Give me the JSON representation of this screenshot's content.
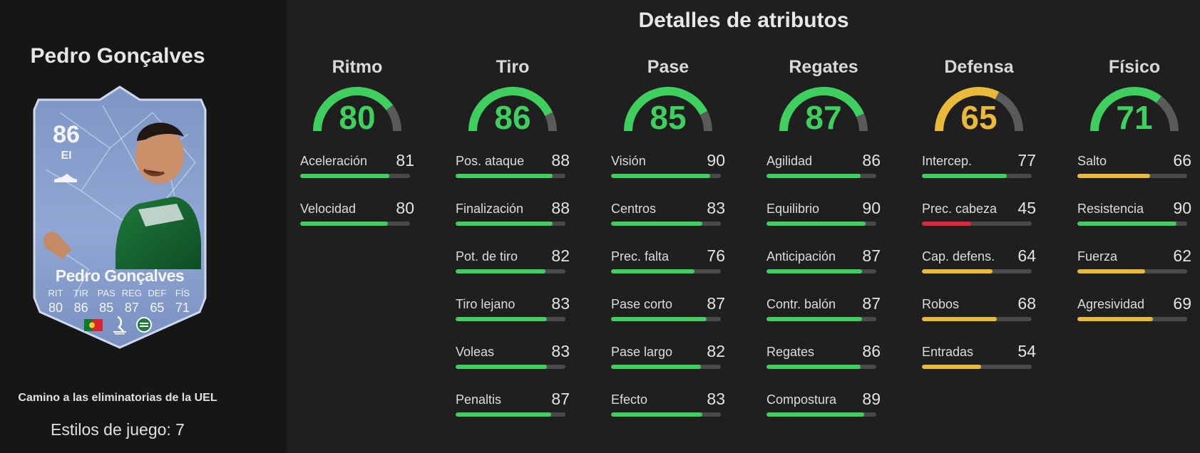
{
  "player": {
    "name": "Pedro Gonçalves",
    "event": "Camino a las eliminatorias de la UEL",
    "playstyles": "Estilos de juego: 7"
  },
  "card": {
    "ovr": "86",
    "position": "EI",
    "name": "Pedro Gonçalves",
    "stat_labels": [
      "RIT",
      "TIR",
      "PAS",
      "REG",
      "DEF",
      "FÍS"
    ],
    "stat_values": [
      "80",
      "86",
      "85",
      "87",
      "65",
      "71"
    ],
    "nation_icon": "portugal-flag-icon",
    "league_icon": "liga-portugal-icon",
    "club_icon": "sporting-cp-crest-icon"
  },
  "section_title": "Detalles de atributos",
  "colors": {
    "green": "#3ecf5e",
    "yellow": "#e8b93a",
    "red": "#e0263a",
    "track": "#4a4a4a"
  },
  "categories": [
    {
      "name": "Ritmo",
      "value": "80",
      "tone": "green",
      "attributes": [
        {
          "label": "Aceleración",
          "value": "81"
        },
        {
          "label": "Velocidad",
          "value": "80"
        }
      ]
    },
    {
      "name": "Tiro",
      "value": "86",
      "tone": "green",
      "attributes": [
        {
          "label": "Pos. ataque",
          "value": "88"
        },
        {
          "label": "Finalización",
          "value": "88"
        },
        {
          "label": "Pot. de tiro",
          "value": "82"
        },
        {
          "label": "Tiro lejano",
          "value": "83"
        },
        {
          "label": "Voleas",
          "value": "83"
        },
        {
          "label": "Penaltis",
          "value": "87"
        }
      ]
    },
    {
      "name": "Pase",
      "value": "85",
      "tone": "green",
      "attributes": [
        {
          "label": "Visión",
          "value": "90"
        },
        {
          "label": "Centros",
          "value": "83"
        },
        {
          "label": "Prec. falta",
          "value": "76"
        },
        {
          "label": "Pase corto",
          "value": "87"
        },
        {
          "label": "Pase largo",
          "value": "82"
        },
        {
          "label": "Efecto",
          "value": "83"
        }
      ]
    },
    {
      "name": "Regates",
      "value": "87",
      "tone": "green",
      "attributes": [
        {
          "label": "Agilidad",
          "value": "86"
        },
        {
          "label": "Equilibrio",
          "value": "90"
        },
        {
          "label": "Anticipación",
          "value": "87"
        },
        {
          "label": "Contr. balón",
          "value": "87"
        },
        {
          "label": "Regates",
          "value": "86"
        },
        {
          "label": "Compostura",
          "value": "89"
        }
      ]
    },
    {
      "name": "Defensa",
      "value": "65",
      "tone": "yellow",
      "attributes": [
        {
          "label": "Intercep.",
          "value": "77"
        },
        {
          "label": "Prec. cabeza",
          "value": "45"
        },
        {
          "label": "Cap. defens.",
          "value": "64"
        },
        {
          "label": "Robos",
          "value": "68"
        },
        {
          "label": "Entradas",
          "value": "54"
        }
      ]
    },
    {
      "name": "Físico",
      "value": "71",
      "tone": "green",
      "attributes": [
        {
          "label": "Salto",
          "value": "66"
        },
        {
          "label": "Resistencia",
          "value": "90"
        },
        {
          "label": "Fuerza",
          "value": "62"
        },
        {
          "label": "Agresividad",
          "value": "69"
        }
      ]
    }
  ]
}
